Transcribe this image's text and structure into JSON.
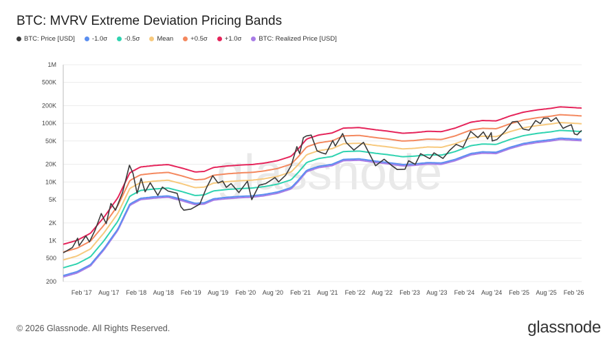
{
  "title": "BTC: MVRV Extreme Deviation Pricing Bands",
  "footer": "© 2026 Glassnode. All Rights Reserved.",
  "brand": "glassnode",
  "watermark": "glassnode",
  "chart_data": {
    "type": "line",
    "y_scale": "log",
    "ylim": [
      200,
      1000000
    ],
    "y_ticks": [
      {
        "label": "1M",
        "value": 1000000
      },
      {
        "label": "500K",
        "value": 500000
      },
      {
        "label": "200K",
        "value": 200000
      },
      {
        "label": "100K",
        "value": 100000
      },
      {
        "label": "50K",
        "value": 50000
      },
      {
        "label": "20K",
        "value": 20000
      },
      {
        "label": "10K",
        "value": 10000
      },
      {
        "label": "5K",
        "value": 5000
      },
      {
        "label": "2K",
        "value": 2000
      },
      {
        "label": "1K",
        "value": 1000
      },
      {
        "label": "500",
        "value": 500
      },
      {
        "label": "200",
        "value": 200
      }
    ],
    "x_range": [
      "2016-10-01",
      "2026-03-25"
    ],
    "x_ticks": [
      {
        "label": "Feb '17",
        "date": "2017-02-01"
      },
      {
        "label": "Aug '17",
        "date": "2017-08-01"
      },
      {
        "label": "Feb '18",
        "date": "2018-02-01"
      },
      {
        "label": "Aug '18",
        "date": "2018-08-01"
      },
      {
        "label": "Feb '19",
        "date": "2019-02-01"
      },
      {
        "label": "Aug '19",
        "date": "2019-08-01"
      },
      {
        "label": "Feb '20",
        "date": "2020-02-01"
      },
      {
        "label": "Aug '20",
        "date": "2020-08-01"
      },
      {
        "label": "Feb '21",
        "date": "2021-02-01"
      },
      {
        "label": "Aug '21",
        "date": "2021-08-01"
      },
      {
        "label": "Feb '22",
        "date": "2022-02-01"
      },
      {
        "label": "Aug '22",
        "date": "2022-08-01"
      },
      {
        "label": "Feb '23",
        "date": "2023-02-01"
      },
      {
        "label": "Aug '23",
        "date": "2023-08-01"
      },
      {
        "label": "Feb '24",
        "date": "2024-02-01"
      },
      {
        "label": "Aug '24",
        "date": "2024-08-01"
      },
      {
        "label": "Feb '25",
        "date": "2025-02-01"
      },
      {
        "label": "Aug '25",
        "date": "2025-08-01"
      },
      {
        "label": "Feb '26",
        "date": "2026-02-01"
      }
    ],
    "grid": "horizontal",
    "legend_position": "top-left",
    "realized_price": [
      [
        "2016-10-01",
        240
      ],
      [
        "2017-01-01",
        280
      ],
      [
        "2017-04-01",
        370
      ],
      [
        "2017-07-01",
        700
      ],
      [
        "2017-10-01",
        1500
      ],
      [
        "2017-12-20",
        4000
      ],
      [
        "2018-03-01",
        5000
      ],
      [
        "2018-06-01",
        5300
      ],
      [
        "2018-09-01",
        5500
      ],
      [
        "2018-12-01",
        4800
      ],
      [
        "2019-03-01",
        4100
      ],
      [
        "2019-05-01",
        4200
      ],
      [
        "2019-07-01",
        4900
      ],
      [
        "2019-10-01",
        5200
      ],
      [
        "2020-01-01",
        5400
      ],
      [
        "2020-03-15",
        5500
      ],
      [
        "2020-06-01",
        5800
      ],
      [
        "2020-09-01",
        6400
      ],
      [
        "2020-12-01",
        7600
      ],
      [
        "2021-01-15",
        10000
      ],
      [
        "2021-03-15",
        15000
      ],
      [
        "2021-06-01",
        17500
      ],
      [
        "2021-09-01",
        19000
      ],
      [
        "2021-11-15",
        23000
      ],
      [
        "2022-03-01",
        23500
      ],
      [
        "2022-06-20",
        21500
      ],
      [
        "2022-09-01",
        20500
      ],
      [
        "2022-12-15",
        18800
      ],
      [
        "2023-03-01",
        19200
      ],
      [
        "2023-06-01",
        20300
      ],
      [
        "2023-09-01",
        20000
      ],
      [
        "2023-12-01",
        23000
      ],
      [
        "2024-03-15",
        29000
      ],
      [
        "2024-06-01",
        31000
      ],
      [
        "2024-09-01",
        30500
      ],
      [
        "2024-12-01",
        37000
      ],
      [
        "2025-03-01",
        43000
      ],
      [
        "2025-06-01",
        47000
      ],
      [
        "2025-09-01",
        50000
      ],
      [
        "2025-11-01",
        53000
      ],
      [
        "2026-01-01",
        52000
      ],
      [
        "2026-03-25",
        50500
      ]
    ],
    "mean_multiplier": 1.95,
    "sigma_multiplier": 1.36,
    "price": [
      [
        "2016-10-01",
        620
      ],
      [
        "2016-12-01",
        760
      ],
      [
        "2017-01-05",
        1100
      ],
      [
        "2017-01-15",
        820
      ],
      [
        "2017-03-01",
        1200
      ],
      [
        "2017-03-25",
        950
      ],
      [
        "2017-05-01",
        1500
      ],
      [
        "2017-06-12",
        2900
      ],
      [
        "2017-07-15",
        1950
      ],
      [
        "2017-08-15",
        4300
      ],
      [
        "2017-09-15",
        3300
      ],
      [
        "2017-11-01",
        6600
      ],
      [
        "2017-12-17",
        19300
      ],
      [
        "2018-01-10",
        14000
      ],
      [
        "2018-02-06",
        6400
      ],
      [
        "2018-03-05",
        11500
      ],
      [
        "2018-04-01",
        6800
      ],
      [
        "2018-05-05",
        9700
      ],
      [
        "2018-06-25",
        5900
      ],
      [
        "2018-07-25",
        8200
      ],
      [
        "2018-09-01",
        7000
      ],
      [
        "2018-11-01",
        6400
      ],
      [
        "2018-11-25",
        3800
      ],
      [
        "2018-12-15",
        3300
      ],
      [
        "2019-02-01",
        3450
      ],
      [
        "2019-04-01",
        4200
      ],
      [
        "2019-05-15",
        7900
      ],
      [
        "2019-06-26",
        12800
      ],
      [
        "2019-08-01",
        9600
      ],
      [
        "2019-09-01",
        10400
      ],
      [
        "2019-09-25",
        8100
      ],
      [
        "2019-10-27",
        9400
      ],
      [
        "2019-12-18",
        6600
      ],
      [
        "2020-02-13",
        10300
      ],
      [
        "2020-03-13",
        5000
      ],
      [
        "2020-05-01",
        8800
      ],
      [
        "2020-06-15",
        9400
      ],
      [
        "2020-08-15",
        11900
      ],
      [
        "2020-09-08",
        10000
      ],
      [
        "2020-10-25",
        13000
      ],
      [
        "2020-12-01",
        19000
      ],
      [
        "2021-01-08",
        40000
      ],
      [
        "2021-01-27",
        30500
      ],
      [
        "2021-02-21",
        57000
      ],
      [
        "2021-03-13",
        61000
      ],
      [
        "2021-04-14",
        63000
      ],
      [
        "2021-05-23",
        34000
      ],
      [
        "2021-06-22",
        31500
      ],
      [
        "2021-07-20",
        30000
      ],
      [
        "2021-09-05",
        51000
      ],
      [
        "2021-09-22",
        41000
      ],
      [
        "2021-11-10",
        67000
      ],
      [
        "2021-12-04",
        47000
      ],
      [
        "2022-01-24",
        35000
      ],
      [
        "2022-03-29",
        47500
      ],
      [
        "2022-05-12",
        28700
      ],
      [
        "2022-06-18",
        18900
      ],
      [
        "2022-08-14",
        24400
      ],
      [
        "2022-09-30",
        19400
      ],
      [
        "2022-11-09",
        16300
      ],
      [
        "2022-12-31",
        16500
      ],
      [
        "2023-01-25",
        23000
      ],
      [
        "2023-03-10",
        20000
      ],
      [
        "2023-04-14",
        30400
      ],
      [
        "2023-06-15",
        25000
      ],
      [
        "2023-07-13",
        31400
      ],
      [
        "2023-09-11",
        25200
      ],
      [
        "2023-10-25",
        34500
      ],
      [
        "2023-12-08",
        43800
      ],
      [
        "2024-01-23",
        39000
      ],
      [
        "2024-03-14",
        73000
      ],
      [
        "2024-05-01",
        57000
      ],
      [
        "2024-06-07",
        71500
      ],
      [
        "2024-07-05",
        54000
      ],
      [
        "2024-07-29",
        69500
      ],
      [
        "2024-08-05",
        50000
      ],
      [
        "2024-09-06",
        53000
      ],
      [
        "2024-10-29",
        73000
      ],
      [
        "2024-12-17",
        106000
      ],
      [
        "2025-01-20",
        108000
      ],
      [
        "2025-02-27",
        80000
      ],
      [
        "2025-04-08",
        76500
      ],
      [
        "2025-05-22",
        111500
      ],
      [
        "2025-06-22",
        99000
      ],
      [
        "2025-07-14",
        122000
      ],
      [
        "2025-08-14",
        123000
      ],
      [
        "2025-09-01",
        108000
      ],
      [
        "2025-10-06",
        125000
      ],
      [
        "2025-11-21",
        82000
      ],
      [
        "2025-12-15",
        88000
      ],
      [
        "2026-01-15",
        95000
      ],
      [
        "2026-02-05",
        66000
      ],
      [
        "2026-02-24",
        64000
      ],
      [
        "2026-03-10",
        70000
      ],
      [
        "2026-03-25",
        76000
      ]
    ],
    "series": [
      {
        "name": "BTC: Price [USD]",
        "color": "#3a3a3a"
      },
      {
        "name": "-1.0σ",
        "color": "#5b8ff0"
      },
      {
        "name": "-0.5σ",
        "color": "#2fd3b0"
      },
      {
        "name": "Mean",
        "color": "#f7c97d"
      },
      {
        "name": "+0.5σ",
        "color": "#f4885e"
      },
      {
        "name": "+1.0σ",
        "color": "#e5245a"
      },
      {
        "name": "BTC: Realized Price [USD]",
        "color": "#a87ce6"
      }
    ]
  }
}
